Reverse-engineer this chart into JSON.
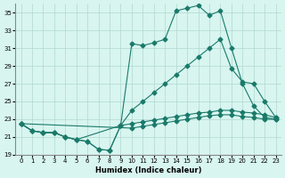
{
  "xlabel": "Humidex (Indice chaleur)",
  "bg_color": "#d8f5f0",
  "grid_color": "#b0d8d0",
  "line_color": "#1a7a6a",
  "ylim": [
    19,
    36
  ],
  "xlim": [
    0,
    23
  ],
  "yticks": [
    19,
    21,
    23,
    25,
    27,
    29,
    31,
    33,
    35
  ],
  "xticks": [
    0,
    1,
    2,
    3,
    4,
    5,
    6,
    7,
    8,
    9,
    10,
    11,
    12,
    13,
    14,
    15,
    16,
    17,
    18,
    19,
    20,
    21,
    22,
    23
  ],
  "line1_x": [
    0,
    1,
    2,
    3,
    4,
    5,
    6,
    7,
    8,
    9,
    10,
    11,
    12,
    13,
    14,
    15,
    16,
    17,
    18,
    19,
    20,
    21,
    22,
    23
  ],
  "line1_y": [
    22.5,
    21.7,
    21.5,
    21.5,
    21.0,
    20.7,
    20.5,
    19.6,
    19.5,
    22.3,
    31.5,
    31.3,
    31.6,
    32.0,
    35.2,
    35.5,
    35.8,
    34.7,
    35.2,
    31.0,
    27.0,
    24.5,
    23.2,
    23.0
  ],
  "line2_x": [
    0,
    1,
    2,
    3,
    4,
    5,
    9,
    10,
    11,
    12,
    13,
    14,
    15,
    16,
    17,
    18,
    19,
    20,
    21,
    22,
    23
  ],
  "line2_y": [
    22.5,
    21.7,
    21.5,
    21.5,
    21.0,
    20.7,
    22.3,
    24.0,
    25.0,
    26.0,
    27.0,
    28.0,
    29.0,
    30.0,
    31.0,
    32.0,
    28.7,
    27.2,
    27.0,
    25.0,
    23.2
  ],
  "line3_x": [
    0,
    1,
    2,
    3,
    4,
    5,
    6,
    7,
    8,
    9,
    10,
    11,
    12,
    13,
    14,
    15,
    16,
    17,
    18,
    19,
    20,
    21,
    22,
    23
  ],
  "line3_y": [
    22.5,
    21.7,
    21.5,
    21.5,
    21.0,
    20.7,
    20.5,
    19.6,
    19.5,
    22.3,
    22.5,
    22.7,
    22.9,
    23.1,
    23.3,
    23.5,
    23.7,
    23.8,
    24.0,
    24.0,
    23.8,
    23.7,
    23.5,
    23.2
  ],
  "line4_x": [
    0,
    10,
    11,
    12,
    13,
    14,
    15,
    16,
    17,
    18,
    19,
    20,
    21,
    22,
    23
  ],
  "line4_y": [
    22.5,
    22.0,
    22.2,
    22.4,
    22.6,
    22.8,
    23.0,
    23.2,
    23.4,
    23.5,
    23.5,
    23.3,
    23.2,
    23.0,
    23.0
  ]
}
